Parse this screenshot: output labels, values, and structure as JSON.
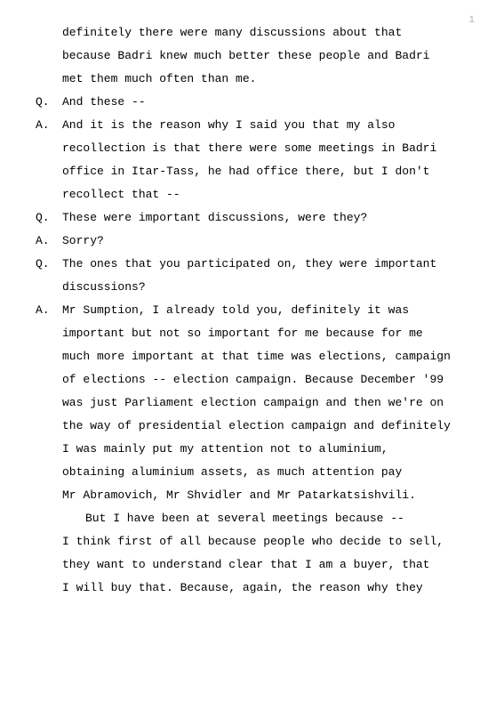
{
  "page_number": "1",
  "lines": [
    {
      "speaker": "",
      "text": "definitely there were many discussions about that"
    },
    {
      "speaker": "",
      "text": "because Badri knew much better these people and Badri"
    },
    {
      "speaker": "",
      "text": "met them much often than me."
    },
    {
      "speaker": "Q.",
      "text": "And these --"
    },
    {
      "speaker": "A.",
      "text": "And it is the reason why I said you that my also"
    },
    {
      "speaker": "",
      "text": "recollection is that there were some meetings in Badri"
    },
    {
      "speaker": "",
      "text": "office in Itar-Tass, he had office there, but I don't"
    },
    {
      "speaker": "",
      "text": "recollect that --"
    },
    {
      "speaker": "Q.",
      "text": "These were important discussions, were they?"
    },
    {
      "speaker": "A.",
      "text": "Sorry?"
    },
    {
      "speaker": "Q.",
      "text": "The ones that you participated on, they were important"
    },
    {
      "speaker": "",
      "text": "discussions?"
    },
    {
      "speaker": "A.",
      "text": "Mr Sumption, I already told you, definitely it was"
    },
    {
      "speaker": "",
      "text": "important but not so important for me because for me"
    },
    {
      "speaker": "",
      "text": "much more important at that time was elections, campaign"
    },
    {
      "speaker": "",
      "text": "of elections -- election campaign.  Because December '99"
    },
    {
      "speaker": "",
      "text": "was just Parliament election campaign and then we're on"
    },
    {
      "speaker": "",
      "text": "the way of presidential election campaign and definitely"
    },
    {
      "speaker": "",
      "text": "I was mainly put my attention not to aluminium,"
    },
    {
      "speaker": "",
      "text": "obtaining aluminium assets, as much attention pay"
    },
    {
      "speaker": "",
      "text": "Mr Abramovich, Mr Shvidler and Mr Patarkatsishvili."
    },
    {
      "speaker": "",
      "text": "But I have been at several meetings because --",
      "para_indent": true
    },
    {
      "speaker": "",
      "text": "I think first of all because people who decide to sell,"
    },
    {
      "speaker": "",
      "text": "they want to understand clear that I am a buyer, that"
    },
    {
      "speaker": "",
      "text": "I will buy that.  Because, again, the reason why they"
    }
  ]
}
